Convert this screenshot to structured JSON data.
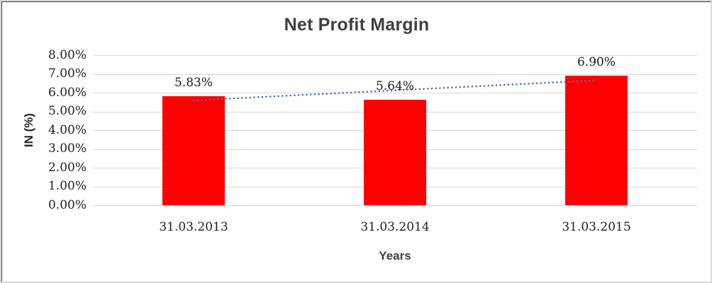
{
  "chart_data": {
    "type": "bar",
    "title": "Net Profit Margin",
    "xlabel": "Years",
    "ylabel": "IN (%)",
    "categories": [
      "31.03.2013",
      "31.03.2014",
      "31.03.2015"
    ],
    "values": [
      5.83,
      5.64,
      6.9
    ],
    "data_labels": [
      "5.83%",
      "5.64%",
      "6.90%"
    ],
    "ylim": [
      0,
      8
    ],
    "ytick_step": 1,
    "ytick_labels_top_to_bottom": [
      "8.00%",
      "7.00%",
      "6.00%",
      "5.00%",
      "4.00%",
      "3.00%",
      "2.00%",
      "1.00%",
      "0.00%"
    ],
    "grid": true,
    "legend": "none",
    "bar_color": "#FF0000",
    "gridline_color": "#D6D6D6",
    "title_color": "#3F3F3F",
    "tick_label_color": "#1F1F1F",
    "trendline": {
      "type": "linear",
      "style": "dotted",
      "color": "#4472C4",
      "start_value": 5.59,
      "end_value": 6.66
    }
  }
}
